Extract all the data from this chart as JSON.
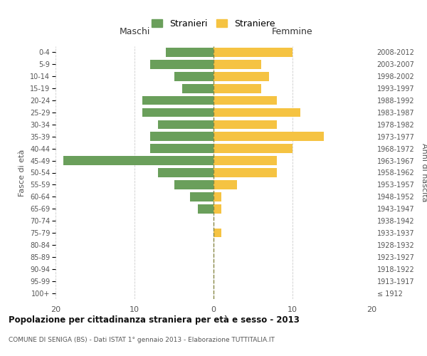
{
  "age_groups": [
    "100+",
    "95-99",
    "90-94",
    "85-89",
    "80-84",
    "75-79",
    "70-74",
    "65-69",
    "60-64",
    "55-59",
    "50-54",
    "45-49",
    "40-44",
    "35-39",
    "30-34",
    "25-29",
    "20-24",
    "15-19",
    "10-14",
    "5-9",
    "0-4"
  ],
  "birth_years": [
    "≤ 1912",
    "1913-1917",
    "1918-1922",
    "1923-1927",
    "1928-1932",
    "1933-1937",
    "1938-1942",
    "1943-1947",
    "1948-1952",
    "1953-1957",
    "1958-1962",
    "1963-1967",
    "1968-1972",
    "1973-1977",
    "1978-1982",
    "1983-1987",
    "1988-1992",
    "1993-1997",
    "1998-2002",
    "2003-2007",
    "2008-2012"
  ],
  "maschi": [
    0,
    0,
    0,
    0,
    0,
    0,
    0,
    2,
    3,
    5,
    7,
    19,
    8,
    8,
    7,
    9,
    9,
    4,
    5,
    8,
    6
  ],
  "femmine": [
    0,
    0,
    0,
    0,
    0,
    1,
    0,
    1,
    1,
    3,
    8,
    8,
    10,
    14,
    8,
    11,
    8,
    6,
    7,
    6,
    10
  ],
  "maschi_color": "#6a9f5b",
  "femmine_color": "#f5c342",
  "background_color": "#ffffff",
  "grid_color": "#cccccc",
  "title": "Popolazione per cittadinanza straniera per età e sesso - 2013",
  "subtitle": "COMUNE DI SENIGA (BS) - Dati ISTAT 1° gennaio 2013 - Elaborazione TUTTITALIA.IT",
  "ylabel_left": "Fasce di età",
  "ylabel_right": "Anni di nascita",
  "xlabel_left": "Maschi",
  "xlabel_right": "Femmine",
  "legend_maschi": "Stranieri",
  "legend_femmine": "Straniere",
  "xlim": 20
}
